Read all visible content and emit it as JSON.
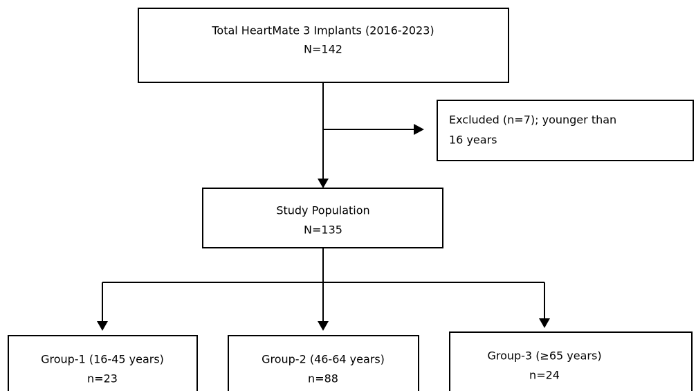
{
  "nodes": [
    {
      "lines": [
        "Total HeartMate 3 Implants (2016-2023)",
        "N=142"
      ]
    },
    {
      "lines": [
        "Excluded (n=7); younger than",
        "16 years"
      ]
    },
    {
      "lines": [
        "Study Population",
        "N=135"
      ]
    },
    {
      "lines": [
        "Group-1 (16-45 years)",
        "n=23"
      ]
    },
    {
      "lines": [
        "Group-2 (46-64 years)",
        "n=88"
      ]
    },
    {
      "lines": [
        "Group-3 (≥65 years)",
        "n=24"
      ]
    }
  ]
}
